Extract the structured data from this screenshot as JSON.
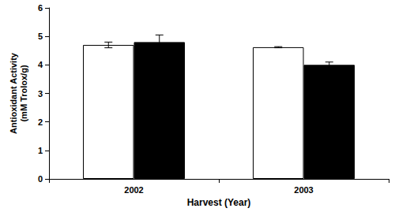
{
  "chart_data": {
    "type": "bar",
    "x_label": "Harvest (Year)",
    "y_label": "Antioxidant Activity\n(mM Trolox/g)",
    "categories": [
      "2002",
      "2003"
    ],
    "series": [
      {
        "color": "#ffffff",
        "values": [
          4.7,
          4.62
        ],
        "errors": [
          0.1,
          0.02
        ]
      },
      {
        "color": "#000000",
        "values": [
          4.8,
          4.0
        ],
        "errors": [
          0.25,
          0.1
        ]
      }
    ],
    "ylim": [
      0,
      6
    ],
    "yticks": [
      0,
      1,
      2,
      3,
      4,
      5,
      6
    ],
    "grid": false
  }
}
